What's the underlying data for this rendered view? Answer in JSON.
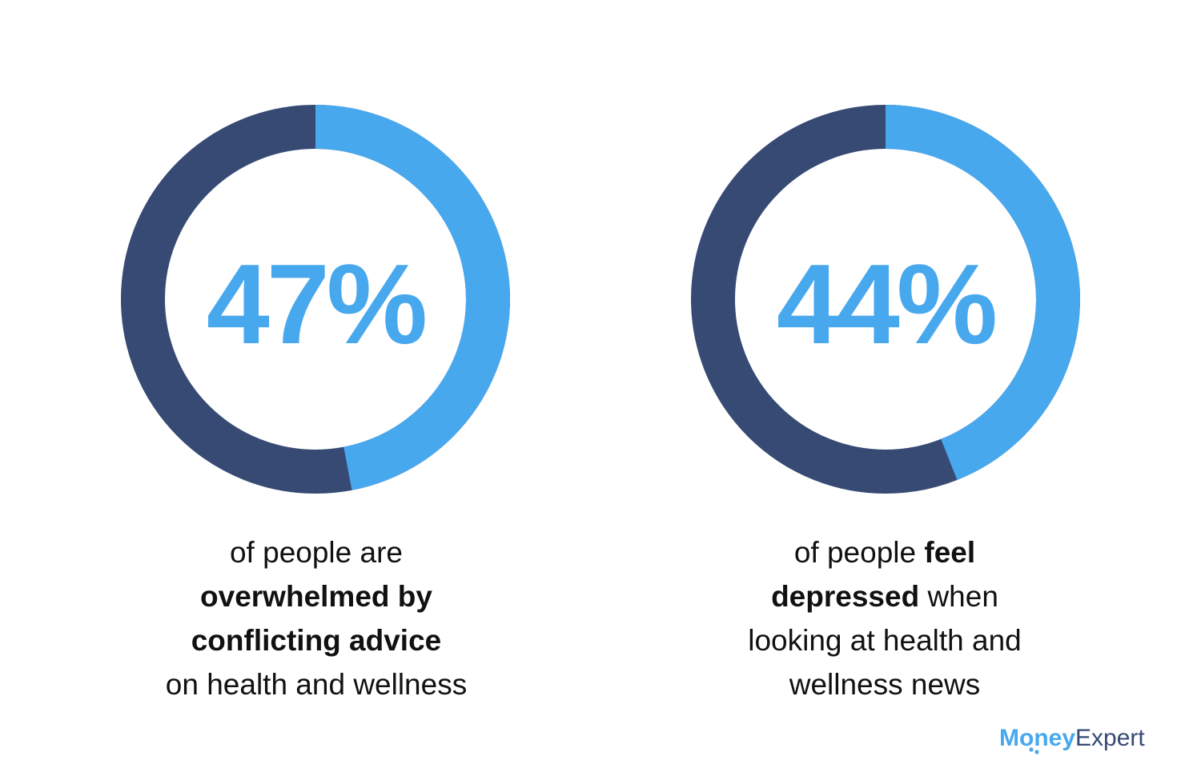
{
  "chart_data": [
    {
      "type": "donut",
      "value_percent": 47,
      "label": "47%",
      "colors": {
        "value": "#48a8ee",
        "remainder": "#364a74"
      },
      "caption": [
        [
          {
            "text": "of people are",
            "bold": false
          }
        ],
        [
          {
            "text": "overwhelmed by",
            "bold": true
          }
        ],
        [
          {
            "text": "conflicting advice",
            "bold": true
          }
        ],
        [
          {
            "text": "on health and wellness",
            "bold": false
          }
        ]
      ]
    },
    {
      "type": "donut",
      "value_percent": 44,
      "label": "44%",
      "colors": {
        "value": "#48a8ee",
        "remainder": "#364a74"
      },
      "caption": [
        [
          {
            "text": "of people ",
            "bold": false
          },
          {
            "text": "feel",
            "bold": true
          }
        ],
        [
          {
            "text": "depressed",
            "bold": true
          },
          {
            "text": " when",
            "bold": false
          }
        ],
        [
          {
            "text": "looking at health and",
            "bold": false
          }
        ],
        [
          {
            "text": "wellness news",
            "bold": false
          }
        ]
      ]
    }
  ],
  "branding": {
    "logo_text_bold": "Money",
    "logo_text_regular": "Expert",
    "colors": {
      "bold": "#48a8ee",
      "regular": "#364a74"
    }
  }
}
